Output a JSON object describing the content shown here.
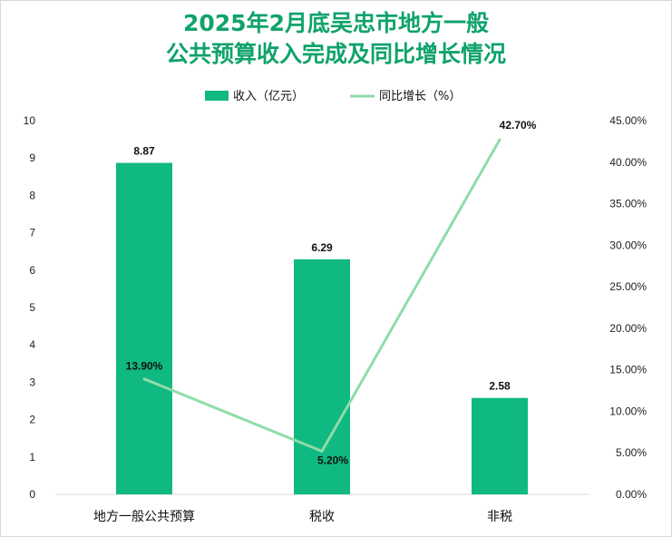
{
  "title": {
    "line1": "2025年2月底吴忠市地方一般",
    "line2": "公共预算收入完成及同比增长情况"
  },
  "colors": {
    "bar": "#10b981",
    "line": "#8fdca8",
    "title": "#0fa36b"
  },
  "chart_data": {
    "type": "bar",
    "title": "2025年2月底吴忠市地方一般公共预算收入完成及同比增长情况",
    "categories": [
      "地方一般公共预算",
      "税收",
      "非税"
    ],
    "series": [
      {
        "name": "收入（亿元）",
        "type": "bar",
        "axis": "left",
        "values": [
          8.87,
          6.29,
          2.58
        ],
        "labels": [
          "8.87",
          "6.29",
          "2.58"
        ]
      },
      {
        "name": "同比增长（%）",
        "type": "line",
        "axis": "right",
        "values": [
          13.9,
          5.2,
          42.7
        ],
        "labels": [
          "13.90%",
          "5.20%",
          "42.70%"
        ]
      }
    ],
    "y_left": {
      "min": 0,
      "max": 10,
      "ticks": [
        "0",
        "1",
        "2",
        "3",
        "4",
        "5",
        "6",
        "7",
        "8",
        "9",
        "10"
      ]
    },
    "y_right": {
      "min": 0,
      "max": 45,
      "ticks": [
        "0.00%",
        "5.00%",
        "10.00%",
        "15.00%",
        "20.00%",
        "25.00%",
        "30.00%",
        "35.00%",
        "40.00%",
        "45.00%"
      ]
    },
    "legend_position": "top",
    "grid": false
  }
}
